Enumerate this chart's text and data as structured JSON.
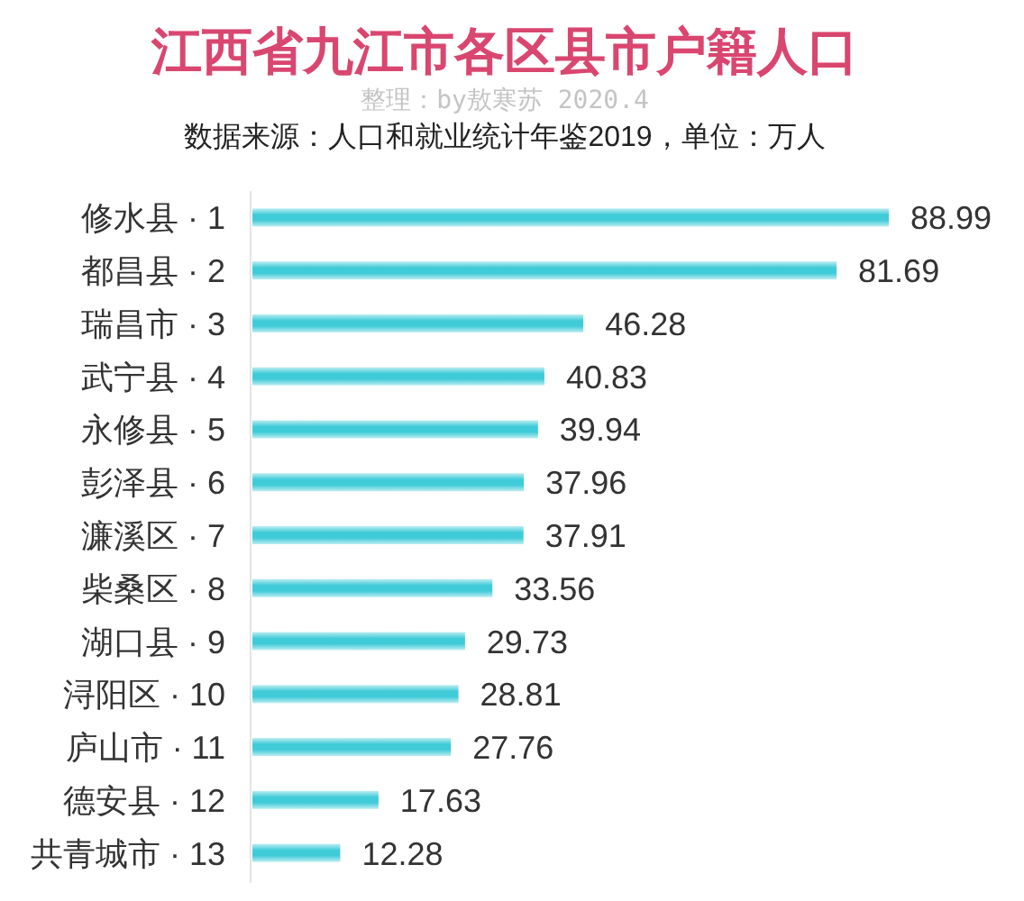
{
  "chart_data": {
    "type": "bar",
    "orientation": "horizontal",
    "title": "江西省九江市各区县市户籍人口",
    "subtitle": "整理：by敖寒苏 2020.4",
    "annotations": [
      "数据来源：人口和就业统计年鉴2019，单位：万人"
    ],
    "categories": [
      "修水县 · 1",
      "都昌县 · 2",
      "瑞昌市 · 3",
      "武宁县 · 4",
      "永修县 · 5",
      "彭泽县 · 6",
      "濂溪区 · 7",
      "柴桑区 · 8",
      "湖口县 · 9",
      "浔阳区 · 10",
      "庐山市 · 11",
      "德安县 · 12",
      "共青城市 · 13"
    ],
    "values": [
      88.99,
      81.69,
      46.28,
      40.83,
      39.94,
      37.96,
      37.91,
      33.56,
      29.73,
      28.81,
      27.76,
      17.63,
      12.28
    ],
    "color": "#3fcbd8",
    "data_labels": true
  }
}
